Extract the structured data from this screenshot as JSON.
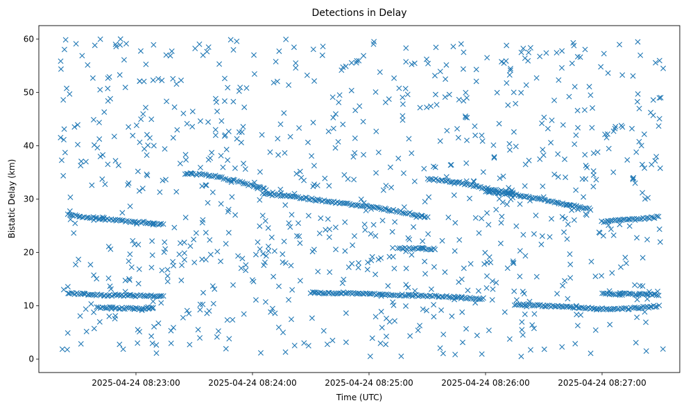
{
  "chart_data": {
    "type": "scatter",
    "title": "Detections in Delay",
    "xlabel": "Time (UTC)",
    "ylabel": "Bistatic Delay (km)",
    "x_ticks": [
      "2025-04-24 08:23:00",
      "2025-04-24 08:24:00",
      "2025-04-24 08:25:00",
      "2025-04-24 08:26:00",
      "2025-04-24 08:27:00"
    ],
    "y_ticks": [
      "0",
      "10",
      "20",
      "30",
      "40",
      "50",
      "60"
    ],
    "xlim": [
      "2025-04-24 08:22:10",
      "2025-04-24 08:27:40"
    ],
    "ylim": [
      -2.5,
      62.5
    ],
    "grid": false,
    "marker": "x",
    "color": "#1f77b4",
    "series": [
      {
        "points_note": "",
        "tracks": [
          {
            "x": [
              "2025-04-24 08:22:25",
              "2025-04-24 08:22:38",
              "2025-04-24 08:22:50",
              "2025-04-24 08:23:05",
              "2025-04-24 08:23:15"
            ],
            "y": [
              27.0,
              26.5,
              26.0,
              25.6,
              25.2
            ]
          },
          {
            "x": [
              "2025-04-24 08:23:25",
              "2025-04-24 08:23:38",
              "2025-04-24 08:23:50",
              "2025-04-24 08:24:00",
              "2025-04-24 08:24:08"
            ],
            "y": [
              34.8,
              34.5,
              33.5,
              32.5,
              31.8
            ]
          },
          {
            "x": [
              "2025-04-24 08:24:05",
              "2025-04-24 08:24:20",
              "2025-04-24 08:24:35",
              "2025-04-24 08:24:50",
              "2025-04-24 08:25:02",
              "2025-04-24 08:25:18",
              "2025-04-24 08:25:31"
            ],
            "y": [
              31.0,
              30.5,
              29.8,
              29.0,
              28.5,
              27.5,
              26.5
            ]
          },
          {
            "x": [
              "2025-04-24 08:25:30",
              "2025-04-24 08:25:45",
              "2025-04-24 08:26:00",
              "2025-04-24 08:26:15"
            ],
            "y": [
              33.8,
              33.2,
              32.0,
              31.0
            ]
          },
          {
            "x": [
              "2025-04-24 08:26:00",
              "2025-04-24 08:26:15",
              "2025-04-24 08:26:30",
              "2025-04-24 08:26:45",
              "2025-04-24 08:26:55"
            ],
            "y": [
              31.5,
              30.8,
              29.8,
              28.8,
              28.0
            ]
          },
          {
            "x": [
              "2025-04-24 08:27:00",
              "2025-04-24 08:27:10",
              "2025-04-24 08:27:20",
              "2025-04-24 08:27:30"
            ],
            "y": [
              25.8,
              26.0,
              26.3,
              26.7
            ]
          },
          {
            "x": [
              "2025-04-24 08:22:25",
              "2025-04-24 08:22:45",
              "2025-04-24 08:23:00",
              "2025-04-24 08:23:15"
            ],
            "y": [
              12.3,
              12.0,
              11.9,
              11.8
            ]
          },
          {
            "x": [
              "2025-04-24 08:22:40",
              "2025-04-24 08:22:50",
              "2025-04-24 08:23:00",
              "2025-04-24 08:23:10"
            ],
            "y": [
              9.6,
              9.6,
              9.5,
              9.5
            ]
          },
          {
            "x": [
              "2025-04-24 08:24:30",
              "2025-04-24 08:24:45",
              "2025-04-24 08:25:00",
              "2025-04-24 08:25:20",
              "2025-04-24 08:25:40",
              "2025-04-24 08:26:00"
            ],
            "y": [
              12.5,
              12.4,
              12.2,
              12.0,
              11.7,
              11.3
            ]
          },
          {
            "x": [
              "2025-04-24 08:26:15",
              "2025-04-24 08:26:30",
              "2025-04-24 08:26:45",
              "2025-04-24 08:27:00",
              "2025-04-24 08:27:15",
              "2025-04-24 08:27:30"
            ],
            "y": [
              10.3,
              10.0,
              9.7,
              9.4,
              9.5,
              10.0
            ]
          },
          {
            "x": [
              "2025-04-24 08:27:00",
              "2025-04-24 08:27:15",
              "2025-04-24 08:27:30"
            ],
            "y": [
              12.2,
              12.2,
              12.0
            ]
          },
          {
            "x": [
              "2025-04-24 08:25:15",
              "2025-04-24 08:25:25",
              "2025-04-24 08:25:35"
            ],
            "y": [
              20.8,
              20.7,
              20.6
            ]
          }
        ],
        "scatter_region": {
          "x_range": [
            "2025-04-24 08:22:21",
            "2025-04-24 08:27:32"
          ],
          "y_range": [
            0.5,
            60.0
          ],
          "approx_count": 900
        }
      }
    ]
  }
}
